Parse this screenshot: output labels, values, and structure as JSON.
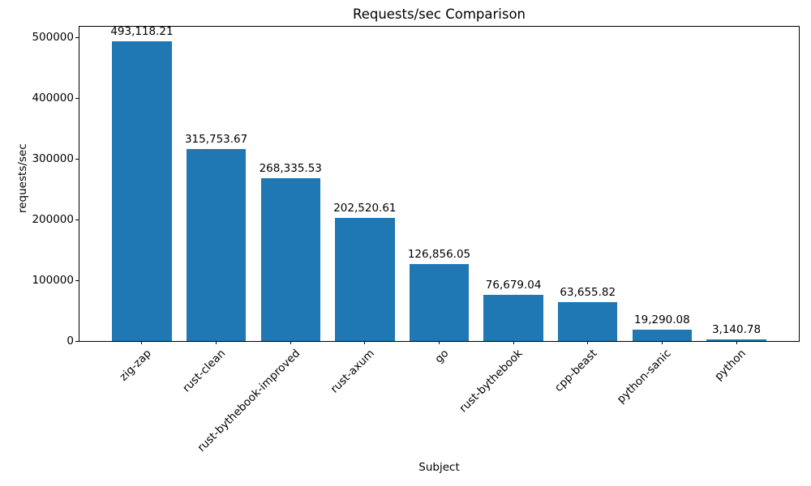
{
  "chart_data": {
    "type": "bar",
    "title": "Requests/sec Comparison",
    "xlabel": "Subject",
    "ylabel": "requests/sec",
    "categories": [
      "zig-zap",
      "rust-clean",
      "rust-bythebook-improved",
      "rust-axum",
      "go",
      "rust-bythebook",
      "cpp-beast",
      "python-sanic",
      "python"
    ],
    "values": [
      493118.21,
      315753.67,
      268335.53,
      202520.61,
      126856.05,
      76679.04,
      63655.82,
      19290.08,
      3140.78
    ],
    "value_labels": [
      "493,118.21",
      "315,753.67",
      "268,335.53",
      "202,520.61",
      "126,856.05",
      "76,679.04",
      "63,655.82",
      "19,290.08",
      "3,140.78"
    ],
    "y_ticks": [
      0,
      100000,
      200000,
      300000,
      400000,
      500000
    ],
    "y_tick_labels": [
      "0",
      "100000",
      "200000",
      "300000",
      "400000",
      "500000"
    ],
    "ylim": [
      0,
      517774
    ],
    "x_tick_rotation": 45,
    "grid": false,
    "legend": null,
    "bar_color": "#1f77b4",
    "axis_color": "#000000",
    "text_color": "#000000",
    "background_color": "#ffffff"
  }
}
